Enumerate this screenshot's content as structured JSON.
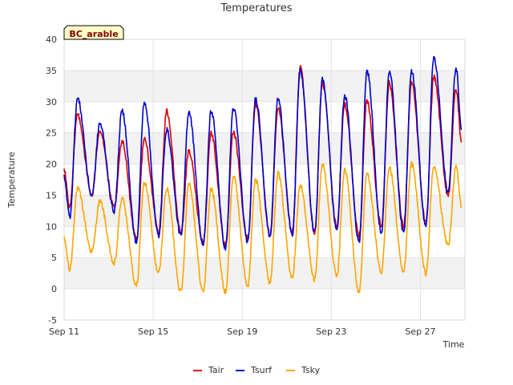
{
  "chart_data": {
    "type": "line",
    "title": "Temperatures",
    "xlabel": "Time",
    "ylabel": "Temperature",
    "site_label": "BC_arable",
    "xlim_days": [
      11,
      29
    ],
    "ylim": [
      -5,
      40
    ],
    "yticks": [
      -5,
      0,
      5,
      10,
      15,
      20,
      25,
      30,
      35,
      40
    ],
    "xticks": [
      {
        "day": 11,
        "label": "Sep 11"
      },
      {
        "day": 15,
        "label": "Sep 15"
      },
      {
        "day": 19,
        "label": "Sep 19"
      },
      {
        "day": 23,
        "label": "Sep 23"
      },
      {
        "day": 27,
        "label": "Sep 27"
      }
    ],
    "grid": true,
    "legend_position": "bottom",
    "daily_peak_day_offset": 0.6,
    "daily_trough_day_offset": 0.25,
    "series": [
      {
        "name": "Tair",
        "color": "#dd0000",
        "start_value": 19,
        "daily_min": [
          13,
          15,
          13,
          8,
          9,
          9,
          7.5,
          7,
          8,
          8.5,
          9,
          9,
          10,
          8.5,
          10,
          10,
          10.5,
          15
        ],
        "daily_max": [
          28,
          25.5,
          23.5,
          24,
          28.5,
          22,
          25,
          25,
          29.5,
          29,
          35.5,
          33,
          29.5,
          30,
          33,
          33,
          34,
          32
        ]
      },
      {
        "name": "Tsurf",
        "color": "#0000cc",
        "start_value": 18,
        "daily_min": [
          11.5,
          15,
          12.5,
          7.5,
          8.5,
          8.5,
          7,
          6.5,
          7.5,
          8.5,
          8.5,
          9,
          9.5,
          7.5,
          9,
          9,
          10,
          15.5
        ],
        "daily_max": [
          30.5,
          26.5,
          28.5,
          30,
          25.5,
          28.5,
          28.5,
          29,
          30.5,
          30.5,
          35,
          33.5,
          31,
          35,
          35,
          35,
          37,
          35.5
        ]
      },
      {
        "name": "Tsky",
        "color": "#ffa500",
        "start_value": 8,
        "daily_min": [
          3,
          6,
          4,
          0.5,
          2.5,
          -0.5,
          -0.5,
          -0.5,
          0.5,
          1,
          2,
          1.5,
          2,
          -0.5,
          2.5,
          2.5,
          2.5,
          7
        ],
        "daily_max": [
          16,
          14,
          14.5,
          17,
          16,
          17,
          16,
          18,
          17.5,
          18.5,
          16.5,
          20,
          19,
          18.5,
          19.5,
          20,
          19.5,
          19.5
        ]
      }
    ]
  }
}
